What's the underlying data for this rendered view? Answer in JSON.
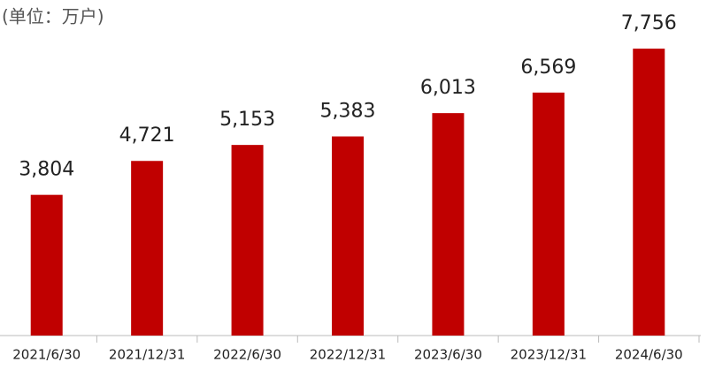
{
  "chart_data": {
    "type": "bar",
    "unit_label": "(单位：万户)",
    "categories": [
      "2021/6/30",
      "2021/12/31",
      "2022/6/30",
      "2022/12/31",
      "2023/6/30",
      "2023/12/31",
      "2024/6/30"
    ],
    "values": [
      3804,
      4721,
      5153,
      5383,
      6013,
      6569,
      7756
    ],
    "value_labels": [
      "3,804",
      "4,721",
      "5,153",
      "5,383",
      "6,013",
      "6,569",
      "7,756"
    ],
    "color": "#c00000",
    "ylim": [
      0,
      9000
    ]
  }
}
